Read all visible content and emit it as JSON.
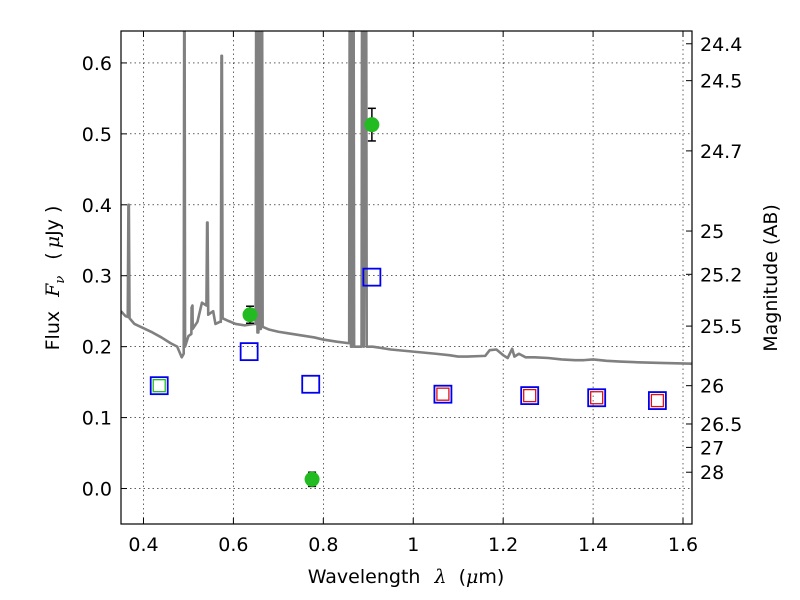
{
  "chart_data": {
    "type": "scatter",
    "xlabel": "Wavelength",
    "xlabel_symbol": "λ",
    "xlabel_unit_prefix": "(",
    "xlabel_unit_mu": "μ",
    "xlabel_unit_suffix": "m)",
    "ylabel": "Flux",
    "ylabel_symbol": "F",
    "ylabel_symbol_sub": "ν",
    "ylabel_unit_prefix": "(",
    "ylabel_unit_mu": "μ",
    "ylabel_unit_suffix": "Jy )",
    "y2label": "Magnitude (AB)",
    "xlim": [
      0.35,
      1.62
    ],
    "ylim": [
      -0.05,
      0.645
    ],
    "grid": true,
    "x_ticks": [
      {
        "value": 0.4,
        "label": "0.4"
      },
      {
        "value": 0.6,
        "label": "0.6"
      },
      {
        "value": 0.8,
        "label": "0.8"
      },
      {
        "value": 1.0,
        "label": "1"
      },
      {
        "value": 1.2,
        "label": "1.2"
      },
      {
        "value": 1.4,
        "label": "1.4"
      },
      {
        "value": 1.6,
        "label": "1.6"
      }
    ],
    "y_ticks": [
      {
        "value": 0.0,
        "label": "0.0"
      },
      {
        "value": 0.1,
        "label": "0.1"
      },
      {
        "value": 0.2,
        "label": "0.2"
      },
      {
        "value": 0.3,
        "label": "0.3"
      },
      {
        "value": 0.4,
        "label": "0.4"
      },
      {
        "value": 0.5,
        "label": "0.5"
      },
      {
        "value": 0.6,
        "label": "0.6"
      }
    ],
    "y2_ticks": [
      {
        "flux": 0.627,
        "label": "24.4"
      },
      {
        "flux": 0.575,
        "label": "24.5"
      },
      {
        "flux": 0.476,
        "label": "24.7"
      },
      {
        "flux": 0.363,
        "label": "25"
      },
      {
        "flux": 0.302,
        "label": "25.2"
      },
      {
        "flux": 0.229,
        "label": "25.5"
      },
      {
        "flux": 0.145,
        "label": "26"
      },
      {
        "flux": 0.091,
        "label": "26.5"
      },
      {
        "flux": 0.058,
        "label": "27"
      },
      {
        "flux": 0.023,
        "label": "28"
      }
    ],
    "model_spectrum": {
      "color": "#808080",
      "points": [
        [
          0.35,
          0.25
        ],
        [
          0.36,
          0.243
        ],
        [
          0.365,
          0.242
        ],
        [
          0.3665,
          0.4
        ],
        [
          0.3675,
          0.4
        ],
        [
          0.369,
          0.24
        ],
        [
          0.38,
          0.232
        ],
        [
          0.4,
          0.226
        ],
        [
          0.42,
          0.22
        ],
        [
          0.44,
          0.213
        ],
        [
          0.46,
          0.205
        ],
        [
          0.475,
          0.2
        ],
        [
          0.485,
          0.185
        ],
        [
          0.4895,
          0.19
        ],
        [
          0.4905,
          0.645
        ],
        [
          0.4915,
          0.645
        ],
        [
          0.4925,
          0.2
        ],
        [
          0.5,
          0.215
        ],
        [
          0.5065,
          0.218
        ],
        [
          0.507,
          0.255
        ],
        [
          0.509,
          0.258
        ],
        [
          0.5095,
          0.225
        ],
        [
          0.52,
          0.235
        ],
        [
          0.53,
          0.262
        ],
        [
          0.54,
          0.258
        ],
        [
          0.5415,
          0.375
        ],
        [
          0.5425,
          0.375
        ],
        [
          0.544,
          0.245
        ],
        [
          0.555,
          0.25
        ],
        [
          0.56,
          0.232
        ],
        [
          0.57,
          0.235
        ],
        [
          0.572,
          0.235
        ],
        [
          0.5735,
          0.61
        ],
        [
          0.5745,
          0.61
        ],
        [
          0.576,
          0.24
        ],
        [
          0.59,
          0.236
        ],
        [
          0.605,
          0.232
        ],
        [
          0.625,
          0.23
        ],
        [
          0.645,
          0.232
        ],
        [
          0.6495,
          0.232
        ],
        [
          0.6505,
          0.645
        ],
        [
          0.6525,
          0.645
        ],
        [
          0.6535,
          0.22
        ],
        [
          0.6555,
          0.22
        ],
        [
          0.6565,
          0.645
        ],
        [
          0.6585,
          0.645
        ],
        [
          0.6595,
          0.225
        ],
        [
          0.661,
          0.225
        ],
        [
          0.662,
          0.645
        ],
        [
          0.664,
          0.645
        ],
        [
          0.665,
          0.228
        ],
        [
          0.68,
          0.224
        ],
        [
          0.7,
          0.221
        ],
        [
          0.72,
          0.219
        ],
        [
          0.75,
          0.216
        ],
        [
          0.78,
          0.213
        ],
        [
          0.8,
          0.21
        ],
        [
          0.83,
          0.207
        ],
        [
          0.855,
          0.205
        ],
        [
          0.8575,
          0.205
        ],
        [
          0.8585,
          0.645
        ],
        [
          0.8605,
          0.645
        ],
        [
          0.8615,
          0.2
        ],
        [
          0.8645,
          0.2
        ],
        [
          0.8655,
          0.645
        ],
        [
          0.8675,
          0.645
        ],
        [
          0.8685,
          0.2
        ],
        [
          0.885,
          0.2
        ],
        [
          0.886,
          0.645
        ],
        [
          0.889,
          0.645
        ],
        [
          0.89,
          0.2
        ],
        [
          0.8925,
          0.645
        ],
        [
          0.8955,
          0.645
        ],
        [
          0.8965,
          0.2
        ],
        [
          0.91,
          0.2
        ],
        [
          0.95,
          0.196
        ],
        [
          1.0,
          0.193
        ],
        [
          1.05,
          0.19
        ],
        [
          1.08,
          0.188
        ],
        [
          1.1,
          0.186
        ],
        [
          1.12,
          0.186
        ],
        [
          1.16,
          0.187
        ],
        [
          1.17,
          0.195
        ],
        [
          1.185,
          0.196
        ],
        [
          1.2,
          0.188
        ],
        [
          1.21,
          0.184
        ],
        [
          1.22,
          0.197
        ],
        [
          1.225,
          0.186
        ],
        [
          1.235,
          0.19
        ],
        [
          1.25,
          0.185
        ],
        [
          1.27,
          0.185
        ],
        [
          1.3,
          0.184
        ],
        [
          1.33,
          0.182
        ],
        [
          1.36,
          0.181
        ],
        [
          1.38,
          0.181
        ],
        [
          1.4,
          0.182
        ],
        [
          1.43,
          0.18
        ],
        [
          1.46,
          0.179
        ],
        [
          1.5,
          0.178
        ],
        [
          1.55,
          0.177
        ],
        [
          1.62,
          0.176
        ]
      ]
    },
    "series": [
      {
        "marker": "circle",
        "color": "#22bb22",
        "points": [
          {
            "x": 0.637,
            "y": 0.245,
            "yerr": 0.012
          },
          {
            "x": 0.775,
            "y": 0.013,
            "yerr": 0.01
          },
          {
            "x": 0.908,
            "y": 0.513,
            "yerr": 0.023
          }
        ]
      },
      {
        "marker": "square-open",
        "color": "#0000ee",
        "points": [
          {
            "x": 0.435,
            "y": 0.145
          },
          {
            "x": 0.635,
            "y": 0.193
          },
          {
            "x": 0.772,
            "y": 0.147
          },
          {
            "x": 0.908,
            "y": 0.298
          },
          {
            "x": 1.066,
            "y": 0.133
          },
          {
            "x": 1.259,
            "y": 0.131
          },
          {
            "x": 1.408,
            "y": 0.128
          },
          {
            "x": 1.543,
            "y": 0.124
          }
        ]
      },
      {
        "marker": "square-open-small",
        "color": "#22bb22",
        "points": [
          {
            "x": 0.435,
            "y": 0.145
          }
        ]
      },
      {
        "marker": "square-open-small",
        "color": "#dd1111",
        "points": [
          {
            "x": 1.066,
            "y": 0.133
          },
          {
            "x": 1.259,
            "y": 0.131
          },
          {
            "x": 1.408,
            "y": 0.128
          },
          {
            "x": 1.543,
            "y": 0.124
          }
        ]
      }
    ]
  }
}
